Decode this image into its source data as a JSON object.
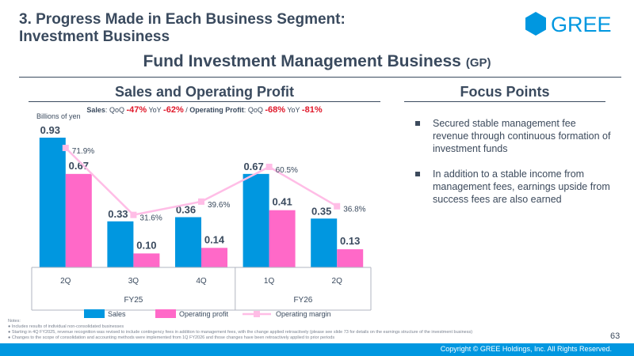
{
  "header": {
    "section_title": "3. Progress Made in Each Business Segment:\n    Investment Business",
    "logo_text": "GREE",
    "main_title": "Fund Investment Management Business",
    "main_title_sub": "(GP)"
  },
  "left_panel": {
    "heading": "Sales and Operating Profit",
    "growth": {
      "sales_label": "Sales",
      "qoq_label": "QoQ",
      "yoy_label": "YoY",
      "sales_qoq": "-47%",
      "sales_yoy": "-62%",
      "separator": "/",
      "op_label": "Operating Profit",
      "op_qoq": "-68%",
      "op_yoy": "-81%"
    }
  },
  "focus": {
    "heading": "Focus Points",
    "items": [
      "Secured stable management fee revenue through continuous formation of investment funds",
      "In addition to a stable income from management fees, earnings upside from success fees are also earned"
    ]
  },
  "chart_data": {
    "type": "bar",
    "ylabel": "Billions of yen",
    "categories": [
      "2Q",
      "3Q",
      "4Q",
      "1Q",
      "2Q"
    ],
    "groups": [
      {
        "label": "FY25",
        "count": 3
      },
      {
        "label": "FY26",
        "count": 2
      }
    ],
    "series": [
      {
        "name": "Sales",
        "type": "bar",
        "values": [
          0.93,
          0.33,
          0.36,
          0.67,
          0.35
        ],
        "labels": [
          "0.93",
          "0.33",
          "0.36",
          "0.67",
          "0.35"
        ],
        "color": "#0097e0"
      },
      {
        "name": "Operating profit",
        "type": "bar",
        "values": [
          0.67,
          0.1,
          0.14,
          0.41,
          0.13
        ],
        "labels": [
          "0.67",
          "0.10",
          "0.14",
          "0.41",
          "0.13"
        ],
        "color": "#ff69c8"
      },
      {
        "name": "Operating margin",
        "type": "line",
        "values": [
          71.9,
          31.6,
          39.6,
          60.5,
          36.8
        ],
        "labels": [
          "71.9%",
          "31.6%",
          "39.6%",
          "60.5%",
          "36.8%"
        ],
        "color": "#ffbde6"
      }
    ],
    "ylim": [
      0,
      0.93
    ],
    "y2lim": [
      0,
      80
    ],
    "legend": "bottom",
    "grid": false
  },
  "notes": {
    "title": "Notes:",
    "items": [
      "Includes results of individual non-consolidated businesses",
      "Starting in 4Q FY2025, revenue recognition was revised to include contingency fees in addition to management fees, with the change applied retroactively (please see slide 73 for details on the earnings structure of the investment business)",
      "Changes to the scope of consolidation and accounting methods were implemented from 1Q FY2026 and those changes have been retroactively applied to prior periods"
    ]
  },
  "page_number": "63",
  "footer": {
    "copyright": "Copyright © GREE Holdings, Inc. All Rights Reserved.",
    "color": "#0097e0"
  }
}
